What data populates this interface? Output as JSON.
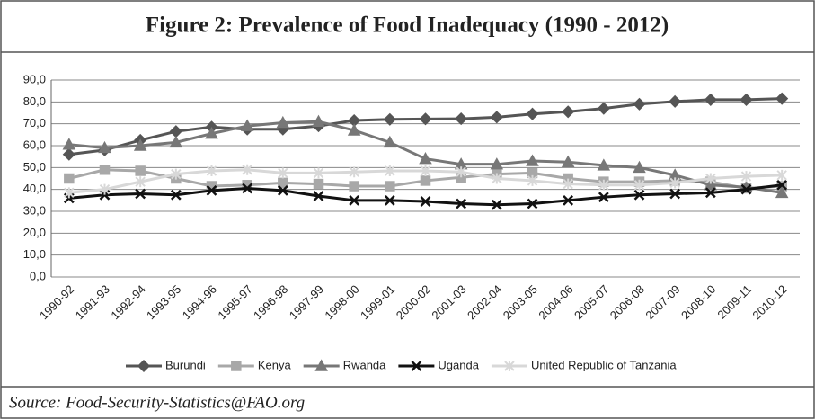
{
  "chart_data": {
    "type": "line",
    "title": "Figure 2: Prevalence of Food Inadequacy (1990 - 2012)",
    "source": "Source:  Food-Security-Statistics@FAO.org",
    "categories": [
      "1990-92",
      "1991-93",
      "1992-94",
      "1993-95",
      "1994-96",
      "1995-97",
      "1996-98",
      "1997-99",
      "1998-00",
      "1999-01",
      "2000-02",
      "2001-03",
      "2002-04",
      "2003-05",
      "2004-06",
      "2005-07",
      "2006-08",
      "2007-09",
      "2008-10",
      "2009-11",
      "2010-12"
    ],
    "series": [
      {
        "name": "Burundi",
        "color": "#555555",
        "marker": "diamond",
        "values": [
          56,
          58,
          62.5,
          66.5,
          68.5,
          67.5,
          67.5,
          69,
          71.5,
          72,
          72.2,
          72.3,
          73,
          74.5,
          75.5,
          77,
          79,
          80.2,
          81,
          81,
          81.5
        ]
      },
      {
        "name": "Kenya",
        "color": "#a8a8a8",
        "marker": "square",
        "values": [
          45,
          49,
          48.5,
          45,
          41.5,
          42,
          43,
          42.5,
          41.5,
          41.5,
          44,
          45.5,
          47,
          47.5,
          45,
          43.5,
          43.5,
          44,
          43.5,
          40.5,
          41.5
        ]
      },
      {
        "name": "Rwanda",
        "color": "#777777",
        "marker": "triangle",
        "values": [
          60.5,
          59,
          60,
          61.5,
          65.5,
          69,
          70.5,
          71,
          67,
          61.5,
          54,
          51.5,
          51.5,
          53,
          52.5,
          51,
          50,
          46.5,
          42,
          41,
          38.5
        ]
      },
      {
        "name": "Uganda",
        "color": "#111111",
        "marker": "x",
        "values": [
          36,
          37.5,
          38,
          37.5,
          39.5,
          40.5,
          39.5,
          37,
          35,
          35,
          34.5,
          33.5,
          33,
          33.5,
          35,
          36.5,
          37.5,
          38,
          38.5,
          40,
          42
        ]
      },
      {
        "name": "United Republic of Tanzania",
        "color": "#d8d8d8",
        "marker": "star",
        "values": [
          38.5,
          40,
          43.5,
          47,
          48.5,
          49,
          47.5,
          47.5,
          48,
          48.5,
          48.5,
          48,
          45,
          44,
          42.5,
          42,
          42,
          43,
          45,
          46,
          46.5
        ]
      }
    ],
    "ylim": [
      0,
      90
    ],
    "yticks": [
      {
        "value": 0,
        "label": "0,0"
      },
      {
        "value": 10,
        "label": "10,0"
      },
      {
        "value": 20,
        "label": "20,0"
      },
      {
        "value": 30,
        "label": "30,0"
      },
      {
        "value": 40,
        "label": "40,0"
      },
      {
        "value": 50,
        "label": "50,0"
      },
      {
        "value": 60,
        "label": "60,0"
      },
      {
        "value": 70,
        "label": "70,0"
      },
      {
        "value": 80,
        "label": "80,0"
      },
      {
        "value": 90,
        "label": "90,0"
      }
    ],
    "grid": true,
    "legend": "bottom"
  }
}
